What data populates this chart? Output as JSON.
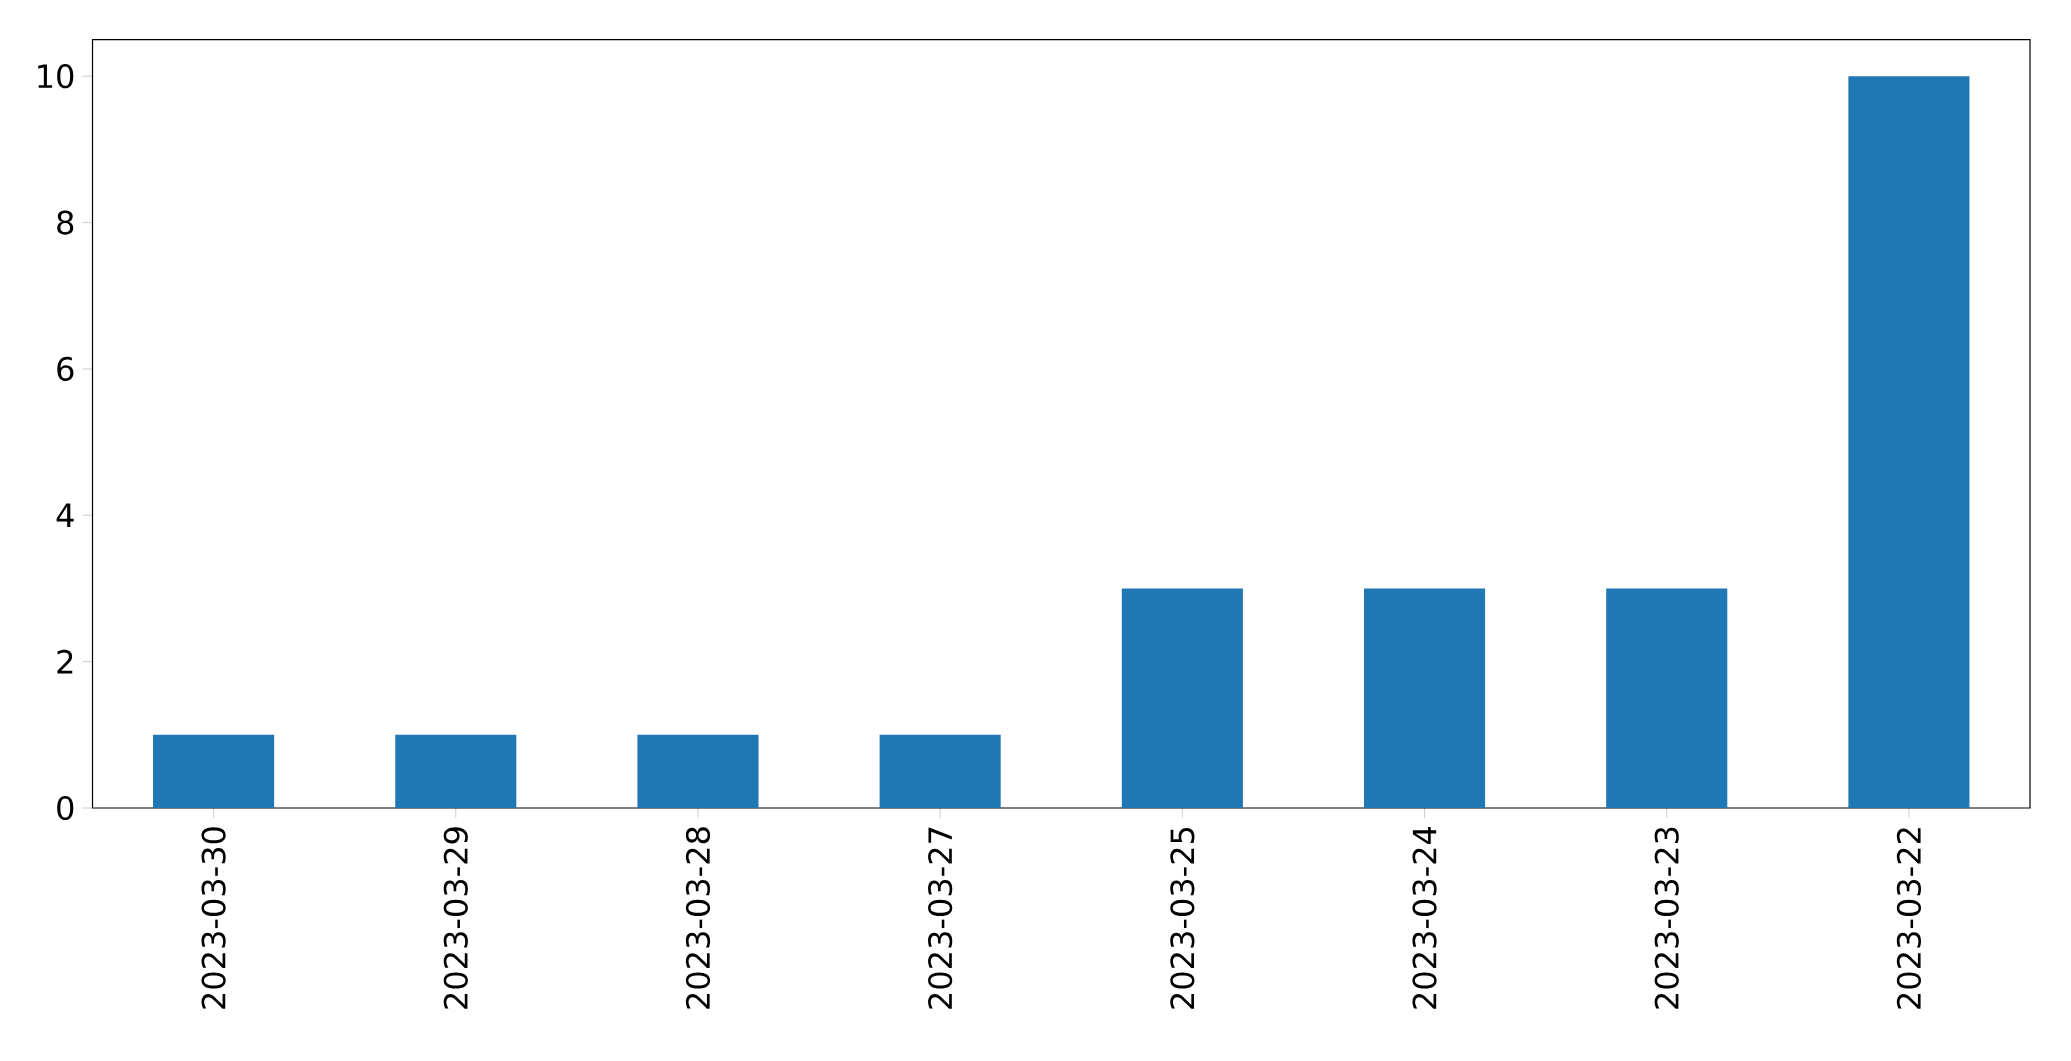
{
  "chart_data": {
    "type": "bar",
    "categories": [
      "2023-03-30",
      "2023-03-29",
      "2023-03-28",
      "2023-03-27",
      "2023-03-25",
      "2023-03-24",
      "2023-03-23",
      "2023-03-22"
    ],
    "values": [
      1,
      1,
      1,
      1,
      3,
      3,
      3,
      10
    ],
    "color": "#1f77b4",
    "ylim": [
      0,
      10.5
    ],
    "yticks": [
      0,
      2,
      4,
      6,
      8,
      10
    ]
  }
}
